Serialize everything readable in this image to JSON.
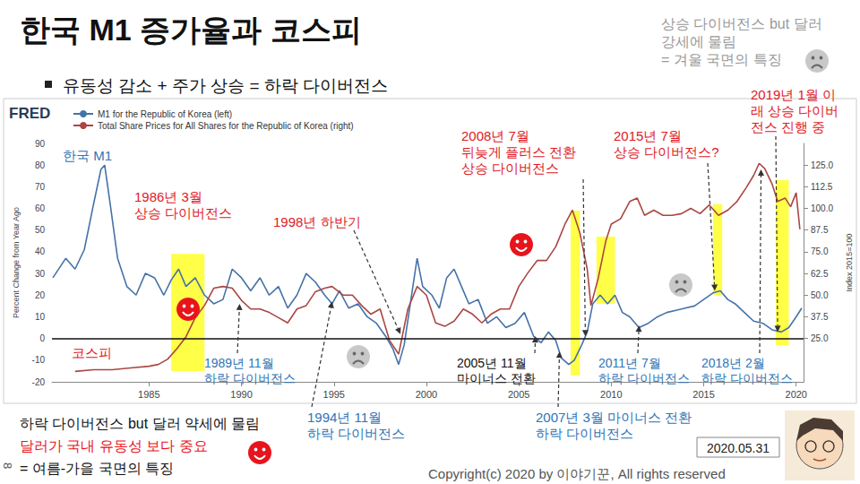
{
  "slide": {
    "title": "한국 M1 증가율과 코스피",
    "bullet": "유동성 감소 + 주가 상승 = 하락 다이버전스",
    "corner_note": "상승 다이버전스 but 달러\n강세에 물림\n= 겨울 국면의 특징",
    "source": "FRED",
    "bottom_notes": [
      {
        "text": "하락 다이버전스 but 달러 약세에 물림",
        "color": "#111111"
      },
      {
        "text": "달러가 국내 유동성 보다 중요",
        "color": "#e8141b"
      },
      {
        "text": "= 여름-가을 국면의 특징",
        "color": "#111111"
      }
    ],
    "copyright": "Copyright(c) 2020 by 이야기꾼, All rights reserved",
    "date": "2020.05.31",
    "page": "8"
  },
  "chart_data": {
    "type": "line",
    "ylabel": "Percent Change from Year Ago",
    "y2label": "Index 2015=100",
    "xlim": [
      1979.75,
      2020.4
    ],
    "xticks": [
      1985,
      1990,
      1995,
      2000,
      2005,
      2010,
      2015,
      2020
    ],
    "ylim": [
      -20,
      90
    ],
    "yticks": [
      -20,
      -10,
      0,
      10,
      20,
      30,
      40,
      50,
      60,
      70,
      80,
      90
    ],
    "y2lim": [
      0,
      137.5
    ],
    "y2ticks": [
      {
        "value": 25,
        "label": "25.0"
      },
      37.5,
      {
        "value": 50,
        "label": "50.0"
      },
      62.5,
      {
        "value": 75,
        "label": "75.0"
      },
      87.5,
      {
        "value": 100,
        "label": "100.0"
      },
      112.5,
      {
        "value": 125,
        "label": "125.0"
      }
    ],
    "grid": false,
    "legend": "upper left",
    "hline": 0,
    "highlights": [
      {
        "x": [
          1986.2,
          1988.0
        ],
        "y": [
          -15,
          39
        ]
      },
      {
        "x": [
          2007.8,
          2008.3
        ],
        "y": [
          -17,
          59
        ]
      },
      {
        "x": [
          2009.2,
          2010.2
        ],
        "y": [
          16,
          47
        ]
      },
      {
        "x": [
          2015.5,
          2016.0
        ],
        "y": [
          20,
          62
        ]
      },
      {
        "x": [
          2018.9,
          2019.6
        ],
        "y": [
          -3,
          73
        ]
      }
    ],
    "annotations": [
      {
        "text": "한국 M1",
        "color": "#2e75b6"
      },
      {
        "text": "코스피",
        "color": "#e0191f"
      },
      {
        "text": "1986년 3월\n상승 다이버전스",
        "color": "#e0191f"
      },
      {
        "text": "1998년 하반기",
        "color": "#e0191f",
        "point": [
          1998.6,
          2
        ]
      },
      {
        "text": "2008년 7월\n뒤늦게 플러스 전환\n상승 다이버전스",
        "color": "#e0191f",
        "point": [
          2008.6,
          1
        ]
      },
      {
        "text": "2015년 7월\n상승 다이버전스?",
        "color": "#e0191f",
        "point": [
          2015.6,
          22
        ]
      },
      {
        "text": "2019년 1월 이\n래 상승 다이버\n전스 진행 중",
        "color": "#e0191f",
        "point": [
          2019.0,
          3
        ]
      },
      {
        "text": "1989년 11월\n하락 다이버전스",
        "color": "#2e75b6",
        "point": [
          1989.9,
          16
        ]
      },
      {
        "text": "1994년 11월\n하락 다이버전스",
        "color": "#2e75b6",
        "point": [
          1994.9,
          17
        ]
      },
      {
        "text": "2005년 11월\n마이너스 전환",
        "color": "#111111",
        "point": [
          2005.9,
          1
        ]
      },
      {
        "text": "2007년 3월 마이너스 전환\n하락 다이버전스",
        "color": "#2e75b6",
        "point": [
          2007.2,
          -6
        ]
      },
      {
        "text": "2011년 7월\n하락 다이버전스",
        "color": "#2e75b6",
        "point": [
          2011.5,
          6
        ]
      },
      {
        "text": "2018년 2월\n하락 다이버전스",
        "color": "#2e75b6",
        "point": [
          2018.1,
          78
        ]
      }
    ],
    "series": [
      {
        "name": "M1 for the Republic of Korea (left)",
        "color": "#4572a7",
        "x": [
          1979.8,
          1980.5,
          1981,
          1981.5,
          1982,
          1982.4,
          1982.6,
          1982.9,
          1983.3,
          1983.8,
          1984.3,
          1984.8,
          1985.3,
          1985.8,
          1986.2,
          1986.6,
          1987,
          1987.5,
          1988,
          1988.5,
          1989,
          1989.5,
          1990,
          1990.5,
          1991,
          1991.5,
          1992,
          1992.5,
          1993,
          1993.5,
          1994,
          1994.5,
          1994.9,
          1995.3,
          1995.8,
          1996.3,
          1996.8,
          1997.3,
          1997.8,
          1998.2,
          1998.5,
          1998.8,
          1999.2,
          1999.5,
          1999.8,
          2000.3,
          2000.7,
          2001.1,
          2001.5,
          2001.9,
          2002.3,
          2002.8,
          2003.3,
          2003.8,
          2004.3,
          2004.8,
          2005.3,
          2005.8,
          2006.2,
          2006.6,
          2007,
          2007.3,
          2007.7,
          2008,
          2008.4,
          2008.7,
          2009,
          2009.4,
          2009.8,
          2010.2,
          2010.6,
          2011,
          2011.5,
          2012,
          2012.5,
          2013,
          2013.5,
          2014,
          2014.5,
          2015,
          2015.5,
          2015.9,
          2016.3,
          2016.7,
          2017.2,
          2017.7,
          2018.2,
          2018.7,
          2019.2,
          2019.6,
          2020,
          2020.3
        ],
        "values": [
          28,
          37,
          32,
          41,
          62,
          78,
          80,
          62,
          37,
          24,
          20,
          30,
          28,
          20,
          27,
          32,
          24,
          28,
          20,
          16,
          18,
          32,
          28,
          22,
          28,
          20,
          24,
          14,
          20,
          30,
          26,
          20,
          16,
          22,
          14,
          16,
          10,
          7,
          1,
          -5,
          -12,
          -3,
          20,
          37,
          24,
          20,
          14,
          28,
          32,
          24,
          16,
          18,
          7,
          10,
          5,
          7,
          12,
          1,
          -2,
          3,
          -1,
          -9,
          -12,
          -10,
          -3,
          3,
          16,
          20,
          16,
          20,
          12,
          10,
          5,
          7,
          10,
          12,
          13,
          14,
          15,
          18,
          21,
          22,
          18,
          16,
          12,
          8,
          7,
          4,
          3,
          5,
          10,
          14
        ]
      },
      {
        "name": "Total Share Prices for All Shares for the Republic of Korea (right)",
        "color": "#aa4643",
        "axis": "y2",
        "x": [
          1981,
          1982,
          1983,
          1984,
          1985,
          1985.5,
          1986,
          1986.5,
          1987,
          1987.5,
          1988,
          1988.5,
          1989,
          1989.5,
          1990,
          1990.5,
          1991,
          1991.5,
          1992,
          1992.5,
          1993,
          1993.5,
          1994,
          1994.5,
          1994.9,
          1995.5,
          1996,
          1996.5,
          1997,
          1997.5,
          1998,
          1998.5,
          1999,
          1999.5,
          2000,
          2000.5,
          2001,
          2001.5,
          2002,
          2002.5,
          2003,
          2003.5,
          2004,
          2004.5,
          2005,
          2005.5,
          2006,
          2006.5,
          2007,
          2007.5,
          2007.9,
          2008.3,
          2008.7,
          2008.9,
          2009.3,
          2009.7,
          2010,
          2010.5,
          2011,
          2011.4,
          2011.8,
          2012.3,
          2012.8,
          2013.3,
          2013.8,
          2014.3,
          2014.8,
          2015.3,
          2015.8,
          2016.3,
          2016.8,
          2017.3,
          2017.7,
          2018,
          2018.3,
          2018.7,
          2019,
          2019.4,
          2019.7,
          2020,
          2020.2
        ],
        "values": [
          6,
          7,
          7,
          8,
          9,
          10,
          13,
          19,
          26,
          37,
          44,
          54,
          55,
          54,
          47,
          42,
          42,
          40,
          37,
          34,
          42,
          44,
          52,
          54,
          55,
          50,
          50,
          44,
          39,
          42,
          24,
          16,
          42,
          55,
          50,
          34,
          32,
          35,
          42,
          39,
          34,
          39,
          42,
          42,
          55,
          63,
          70,
          70,
          78,
          91,
          99,
          86,
          65,
          44,
          60,
          81,
          91,
          94,
          104,
          106,
          96,
          99,
          96,
          96,
          97,
          100,
          97,
          102,
          96,
          99,
          104,
          112,
          119,
          126,
          123,
          114,
          104,
          106,
          101,
          109,
          88
        ]
      }
    ]
  }
}
